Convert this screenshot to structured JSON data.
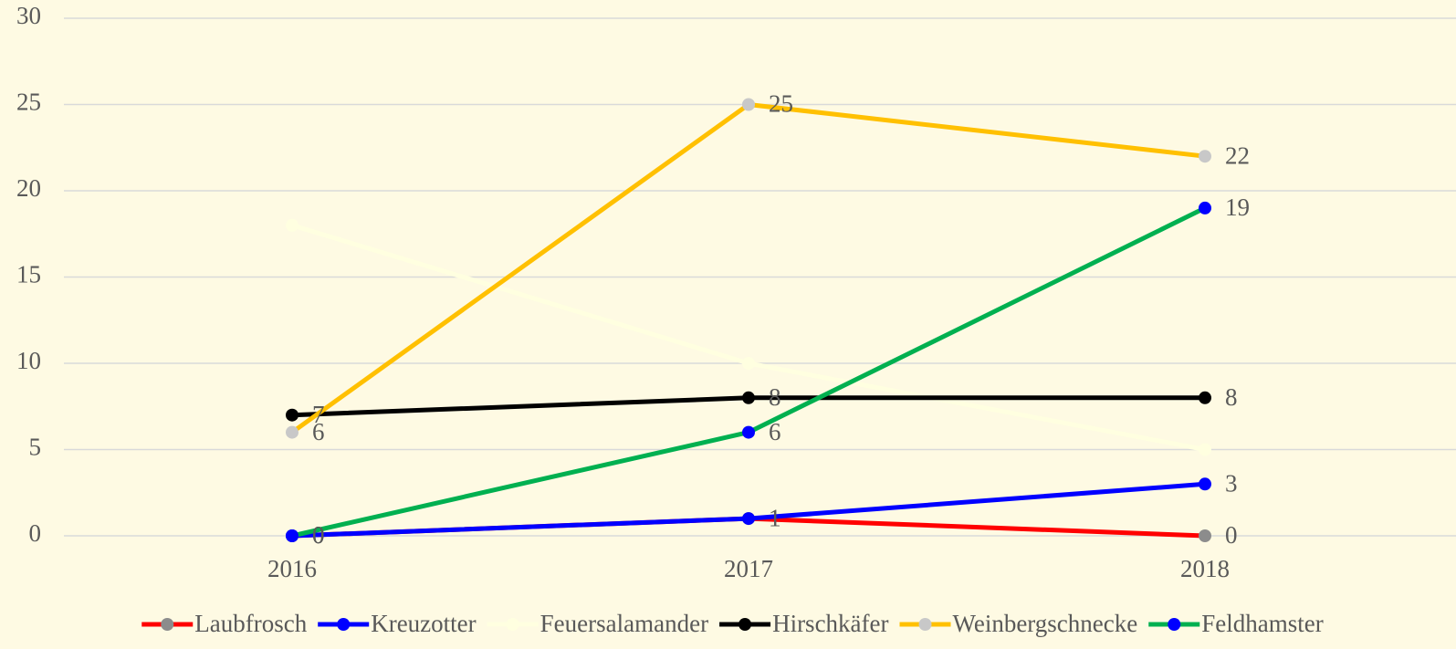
{
  "chart_data": {
    "type": "line",
    "categories": [
      "2016",
      "2017",
      "2018"
    ],
    "ylim": [
      0,
      30
    ],
    "yticks": [
      0,
      5,
      10,
      15,
      20,
      25,
      30
    ],
    "grid": true,
    "legend": "bottom",
    "series": [
      {
        "name": "Laubfrosch",
        "color": "#ff0000",
        "marker_color": "#8c8c8c",
        "data_labels": true,
        "values": [
          0,
          1,
          0
        ]
      },
      {
        "name": "Kreuzotter",
        "color": "#0000ff",
        "marker_color": "#0000ff",
        "data_labels": true,
        "values": [
          0,
          1,
          3
        ]
      },
      {
        "name": "Feuersalamander",
        "color": "#ffffe0",
        "marker_color": "#ffffe0",
        "data_labels": false,
        "values": [
          18,
          10,
          5
        ]
      },
      {
        "name": "Hirschkäfer",
        "color": "#000000",
        "marker_color": "#000000",
        "data_labels": true,
        "values": [
          7,
          8,
          8
        ]
      },
      {
        "name": "Weinbergschnecke",
        "color": "#ffc000",
        "marker_color": "#c8c8c8",
        "data_labels": true,
        "values": [
          6,
          25,
          22
        ]
      },
      {
        "name": "Feldhamster",
        "color": "#00b050",
        "marker_color": "#0000ff",
        "data_labels": true,
        "values": [
          0,
          6,
          19
        ]
      }
    ]
  }
}
